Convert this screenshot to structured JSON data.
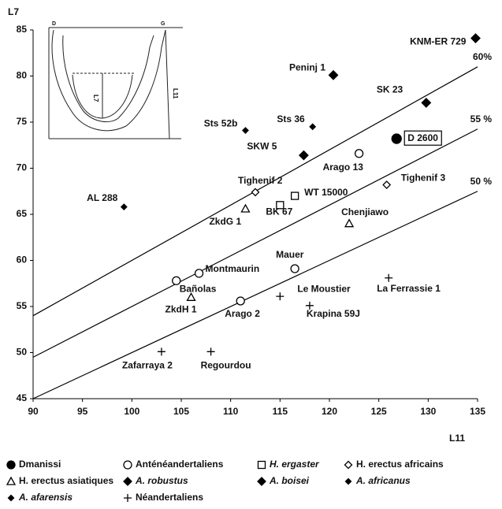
{
  "chart_data": {
    "type": "scatter",
    "x_label": "L11",
    "y_label": "L7",
    "xlim": [
      90,
      135
    ],
    "xticks": [
      90,
      95,
      100,
      105,
      110,
      115,
      120,
      125,
      130,
      135
    ],
    "ylim": [
      45,
      85
    ],
    "yticks": [
      45,
      50,
      55,
      60,
      65,
      70,
      75,
      80,
      85
    ],
    "ratio_lines": [
      {
        "value": 60,
        "label": "60%"
      },
      {
        "value": 55,
        "label": "55 %"
      },
      {
        "value": 50,
        "label": "50 %"
      }
    ],
    "inset_labels": [
      "D",
      "G",
      "L7",
      "L11"
    ],
    "series": [
      {
        "name": "Dmanissi",
        "marker": "circle",
        "filled": true,
        "size": 6,
        "italic": false,
        "color": "#000000",
        "labels": [
          "D 2600"
        ],
        "x": [
          126.8
        ],
        "values": [
          73.2
        ]
      },
      {
        "name": "Anténéandertaliens",
        "marker": "circle",
        "filled": false,
        "size": 5,
        "italic": false,
        "color": "#000000",
        "labels": [
          "Arago 13",
          "Mauer",
          "Montmaurin",
          "Bañolas",
          "Arago 2"
        ],
        "x": [
          123,
          116.5,
          106.8,
          104.5,
          111
        ],
        "values": [
          71.6,
          59.1,
          58.6,
          57.8,
          55.6
        ]
      },
      {
        "name": "H. ergaster",
        "marker": "square",
        "filled": false,
        "size": 4.5,
        "italic": true,
        "color": "#000000",
        "labels": [
          "WT 15000",
          "BK 67"
        ],
        "x": [
          116.5,
          115
        ],
        "values": [
          67,
          66
        ]
      },
      {
        "name": "H. erectus africains",
        "marker": "diamond",
        "filled": false,
        "size": 4.5,
        "italic": false,
        "color": "#000000",
        "labels": [
          "Tighenif 2",
          "Tighenif 3"
        ],
        "x": [
          112.5,
          125.8
        ],
        "values": [
          67.4,
          68.2
        ]
      },
      {
        "name": "H. erectus asiatiques",
        "marker": "triangle",
        "filled": false,
        "size": 5,
        "italic": false,
        "color": "#000000",
        "labels": [
          "ZkdG 1",
          "Chenjiawo",
          "ZkdH 1"
        ],
        "x": [
          111.5,
          122,
          106
        ],
        "values": [
          65.6,
          64,
          56
        ]
      },
      {
        "name": "A. robustus",
        "marker": "diamond",
        "filled": true,
        "size": 5.5,
        "italic": true,
        "color": "#000000",
        "labels": [
          "SK 23",
          "SKW 5"
        ],
        "x": [
          129.8,
          117.4
        ],
        "values": [
          77.1,
          71.4
        ]
      },
      {
        "name": "A. boisei",
        "marker": "diamond",
        "filled": true,
        "size": 5.5,
        "italic": true,
        "color": "#000000",
        "labels": [
          "KNM-ER 729",
          "Peninj 1"
        ],
        "x": [
          134.8,
          120.4
        ],
        "values": [
          84.1,
          80.1
        ]
      },
      {
        "name": "A. africanus",
        "marker": "diamond",
        "filled": true,
        "size": 3.5,
        "italic": true,
        "color": "#000000",
        "labels": [
          "Sts 52b",
          "Sts 36"
        ],
        "x": [
          111.5,
          118.3
        ],
        "values": [
          74.1,
          74.5
        ]
      },
      {
        "name": "A. afarensis",
        "marker": "diamond",
        "filled": true,
        "size": 3.5,
        "italic": true,
        "color": "#000000",
        "labels": [
          "AL 288"
        ],
        "x": [
          99.2
        ],
        "values": [
          65.8
        ]
      },
      {
        "name": "Néandertaliens",
        "marker": "plus",
        "filled": false,
        "size": 5,
        "italic": false,
        "color": "#000000",
        "labels": [
          "Zafarraya 2",
          "Regourdou",
          "Le Moustier",
          "Krapina 59J",
          "La Ferrassie 1"
        ],
        "x": [
          103,
          108,
          115,
          118,
          126
        ],
        "values": [
          50.1,
          50.1,
          56.1,
          55.1,
          58.1
        ]
      }
    ]
  }
}
